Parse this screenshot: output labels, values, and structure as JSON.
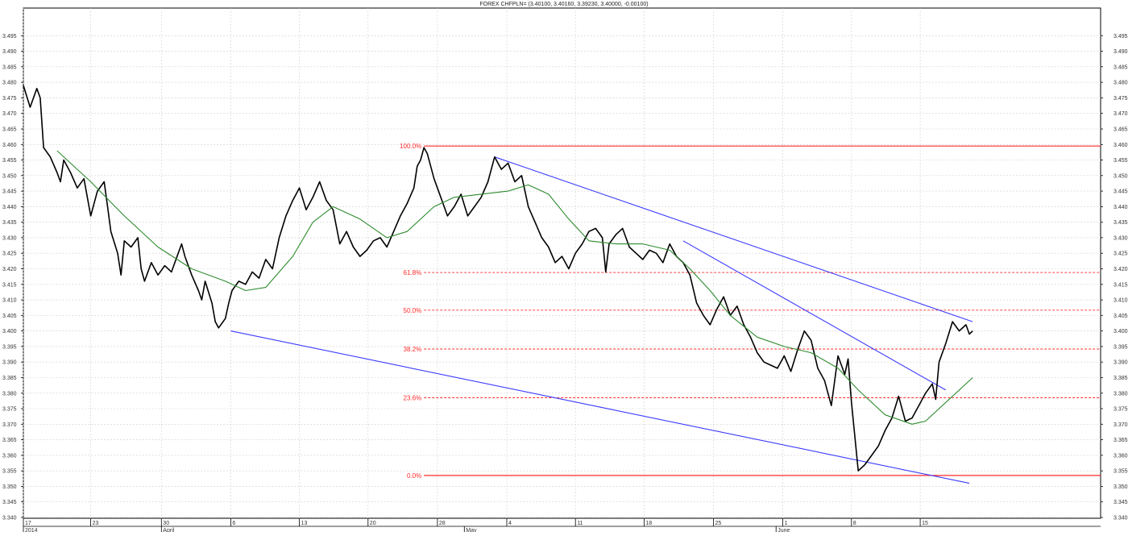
{
  "chart_data": {
    "type": "line",
    "title": "FOREX CHFPLN= (3.40100, 3.40160, 3.39230, 3.40000, -0.00100)",
    "ylim": [
      3.34,
      3.5
    ],
    "xlim": [
      0,
      160
    ],
    "y_ticks": [
      "3.340",
      "3.345",
      "3.350",
      "3.355",
      "3.360",
      "3.365",
      "3.370",
      "3.375",
      "3.380",
      "3.385",
      "3.390",
      "3.395",
      "3.400",
      "3.405",
      "3.410",
      "3.415",
      "3.420",
      "3.425",
      "3.430",
      "3.435",
      "3.440",
      "3.445",
      "3.450",
      "3.455",
      "3.460",
      "3.465",
      "3.470",
      "3.475",
      "3.480",
      "3.485",
      "3.490",
      "3.495"
    ],
    "x_ticks": [
      {
        "x": 0,
        "label": "17"
      },
      {
        "x": 10,
        "label": "23"
      },
      {
        "x": 20.5,
        "label": "30"
      },
      {
        "x": 30.8,
        "label": "6"
      },
      {
        "x": 41,
        "label": "13"
      },
      {
        "x": 51.2,
        "label": "20"
      },
      {
        "x": 61.5,
        "label": "28"
      },
      {
        "x": 71.8,
        "label": "4"
      },
      {
        "x": 82,
        "label": "11"
      },
      {
        "x": 92.2,
        "label": "18"
      },
      {
        "x": 102.5,
        "label": "25"
      },
      {
        "x": 112.8,
        "label": "1"
      },
      {
        "x": 123,
        "label": "8"
      },
      {
        "x": 133.2,
        "label": "15"
      }
    ],
    "x_labels_lower": [
      {
        "x": 0,
        "label": "2014"
      },
      {
        "x": 20.5,
        "label": "April"
      },
      {
        "x": 65.5,
        "label": "May"
      },
      {
        "x": 111.8,
        "label": "June"
      }
    ],
    "grid": true,
    "series": [
      {
        "color": "#000000",
        "values": [
          [
            0,
            3.479
          ],
          [
            1,
            3.472
          ],
          [
            2,
            3.478
          ],
          [
            2.5,
            3.475
          ],
          [
            3,
            3.459
          ],
          [
            4,
            3.456
          ],
          [
            5,
            3.451
          ],
          [
            5.5,
            3.448
          ],
          [
            6,
            3.455
          ],
          [
            7,
            3.451
          ],
          [
            8,
            3.446
          ],
          [
            9,
            3.449
          ],
          [
            9.5,
            3.443
          ],
          [
            10,
            3.437
          ],
          [
            11,
            3.445
          ],
          [
            12,
            3.448
          ],
          [
            12.5,
            3.44
          ],
          [
            13,
            3.432
          ],
          [
            14,
            3.425
          ],
          [
            14.5,
            3.418
          ],
          [
            15,
            3.429
          ],
          [
            16,
            3.427
          ],
          [
            17,
            3.43
          ],
          [
            17.5,
            3.42
          ],
          [
            18,
            3.416
          ],
          [
            19,
            3.422
          ],
          [
            20,
            3.418
          ],
          [
            21,
            3.421
          ],
          [
            22,
            3.419
          ],
          [
            23,
            3.425
          ],
          [
            23.5,
            3.428
          ],
          [
            24,
            3.424
          ],
          [
            25,
            3.418
          ],
          [
            26,
            3.413
          ],
          [
            26.5,
            3.41
          ],
          [
            27,
            3.416
          ],
          [
            28,
            3.409
          ],
          [
            28.5,
            3.403
          ],
          [
            29,
            3.401
          ],
          [
            30,
            3.404
          ],
          [
            30.5,
            3.409
          ],
          [
            31,
            3.413
          ],
          [
            32,
            3.416
          ],
          [
            33,
            3.415
          ],
          [
            34,
            3.419
          ],
          [
            35,
            3.417
          ],
          [
            36,
            3.423
          ],
          [
            37,
            3.42
          ],
          [
            38,
            3.43
          ],
          [
            39,
            3.437
          ],
          [
            40,
            3.442
          ],
          [
            41,
            3.446
          ],
          [
            42,
            3.439
          ],
          [
            43,
            3.443
          ],
          [
            44,
            3.448
          ],
          [
            45,
            3.442
          ],
          [
            46,
            3.439
          ],
          [
            47,
            3.428
          ],
          [
            48,
            3.432
          ],
          [
            49,
            3.427
          ],
          [
            50,
            3.424
          ],
          [
            51,
            3.426
          ],
          [
            52,
            3.429
          ],
          [
            53,
            3.43
          ],
          [
            54,
            3.427
          ],
          [
            55,
            3.432
          ],
          [
            56,
            3.437
          ],
          [
            57,
            3.441
          ],
          [
            58,
            3.446
          ],
          [
            58.5,
            3.453
          ],
          [
            59,
            3.455
          ],
          [
            59.5,
            3.459
          ],
          [
            60,
            3.457
          ],
          [
            61,
            3.449
          ],
          [
            62,
            3.443
          ],
          [
            63,
            3.437
          ],
          [
            64,
            3.44
          ],
          [
            65,
            3.444
          ],
          [
            66,
            3.437
          ],
          [
            67,
            3.44
          ],
          [
            68,
            3.443
          ],
          [
            69,
            3.448
          ],
          [
            70,
            3.456
          ],
          [
            71,
            3.452
          ],
          [
            72,
            3.454
          ],
          [
            73,
            3.448
          ],
          [
            74,
            3.45
          ],
          [
            75,
            3.44
          ],
          [
            76,
            3.435
          ],
          [
            77,
            3.43
          ],
          [
            78,
            3.427
          ],
          [
            79,
            3.422
          ],
          [
            80,
            3.424
          ],
          [
            81,
            3.42
          ],
          [
            82,
            3.425
          ],
          [
            83,
            3.428
          ],
          [
            84,
            3.432
          ],
          [
            85,
            3.433
          ],
          [
            86,
            3.43
          ],
          [
            86.5,
            3.419
          ],
          [
            87,
            3.428
          ],
          [
            88,
            3.431
          ],
          [
            89,
            3.433
          ],
          [
            90,
            3.427
          ],
          [
            91,
            3.425
          ],
          [
            92,
            3.423
          ],
          [
            93,
            3.426
          ],
          [
            94,
            3.425
          ],
          [
            95,
            3.422
          ],
          [
            96,
            3.428
          ],
          [
            97,
            3.424
          ],
          [
            98,
            3.422
          ],
          [
            99,
            3.418
          ],
          [
            100,
            3.409
          ],
          [
            101,
            3.405
          ],
          [
            102,
            3.402
          ],
          [
            103,
            3.407
          ],
          [
            104,
            3.411
          ],
          [
            105,
            3.405
          ],
          [
            106,
            3.408
          ],
          [
            107,
            3.402
          ],
          [
            108,
            3.398
          ],
          [
            109,
            3.393
          ],
          [
            110,
            3.39
          ],
          [
            111,
            3.389
          ],
          [
            112,
            3.388
          ],
          [
            113,
            3.392
          ],
          [
            114,
            3.387
          ],
          [
            115,
            3.394
          ],
          [
            116,
            3.4
          ],
          [
            117,
            3.397
          ],
          [
            118,
            3.388
          ],
          [
            119,
            3.384
          ],
          [
            120,
            3.376
          ],
          [
            121,
            3.392
          ],
          [
            122,
            3.386
          ],
          [
            122.5,
            3.391
          ],
          [
            123,
            3.377
          ],
          [
            124,
            3.355
          ],
          [
            125,
            3.357
          ],
          [
            126,
            3.36
          ],
          [
            127,
            3.363
          ],
          [
            128,
            3.368
          ],
          [
            129,
            3.372
          ],
          [
            130,
            3.379
          ],
          [
            131,
            3.371
          ],
          [
            132,
            3.372
          ],
          [
            133,
            3.376
          ],
          [
            134,
            3.38
          ],
          [
            135,
            3.383
          ],
          [
            135.5,
            3.378
          ],
          [
            136,
            3.39
          ],
          [
            137,
            3.396
          ],
          [
            138,
            3.403
          ],
          [
            139,
            3.4
          ],
          [
            140,
            3.402
          ],
          [
            140.5,
            3.399
          ],
          [
            141,
            3.4
          ]
        ]
      },
      {
        "color": "#2e8b2e",
        "values": [
          [
            5,
            3.458
          ],
          [
            10,
            3.448
          ],
          [
            15,
            3.437
          ],
          [
            20,
            3.427
          ],
          [
            25,
            3.42
          ],
          [
            30,
            3.416
          ],
          [
            33,
            3.413
          ],
          [
            36,
            3.414
          ],
          [
            40,
            3.424
          ],
          [
            43,
            3.435
          ],
          [
            46,
            3.44
          ],
          [
            50,
            3.436
          ],
          [
            54,
            3.43
          ],
          [
            57,
            3.432
          ],
          [
            61,
            3.44
          ],
          [
            64,
            3.443
          ],
          [
            68,
            3.444
          ],
          [
            72,
            3.445
          ],
          [
            75,
            3.447
          ],
          [
            78,
            3.444
          ],
          [
            81,
            3.436
          ],
          [
            84,
            3.429
          ],
          [
            88,
            3.428
          ],
          [
            92,
            3.428
          ],
          [
            96,
            3.426
          ],
          [
            99,
            3.42
          ],
          [
            102,
            3.413
          ],
          [
            105,
            3.405
          ],
          [
            109,
            3.398
          ],
          [
            113,
            3.395
          ],
          [
            117,
            3.393
          ],
          [
            121,
            3.388
          ],
          [
            124,
            3.381
          ],
          [
            128,
            3.373
          ],
          [
            132,
            3.37
          ],
          [
            134,
            3.371
          ],
          [
            137,
            3.377
          ],
          [
            141,
            3.385
          ]
        ]
      }
    ],
    "trendlines": [
      {
        "color": "#3b3bff",
        "from": [
          30.8,
          3.4
        ],
        "to": [
          140.5,
          3.351
        ]
      },
      {
        "color": "#3b3bff",
        "from": [
          70,
          3.456
        ],
        "to": [
          141,
          3.403
        ]
      },
      {
        "color": "#3b3bff",
        "from": [
          98,
          3.429
        ],
        "to": [
          137,
          3.381
        ]
      }
    ],
    "fibonacci": {
      "color": "#ff2a2a",
      "x_start": 59.5,
      "levels": [
        {
          "label": "100.0%",
          "value": 3.4595,
          "style": "solid"
        },
        {
          "label": "61.8%",
          "value": 3.4188,
          "style": "dashed"
        },
        {
          "label": "50.0%",
          "value": 3.4067,
          "style": "dashed"
        },
        {
          "label": "38.2%",
          "value": 3.3942,
          "style": "dashed"
        },
        {
          "label": "23.6%",
          "value": 3.3785,
          "style": "dashed"
        },
        {
          "label": "0.0%",
          "value": 3.3535,
          "style": "solid"
        }
      ]
    }
  }
}
